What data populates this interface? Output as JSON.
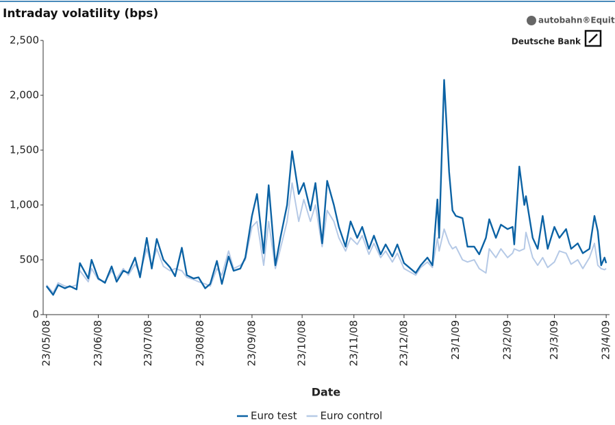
{
  "logo": {
    "brand": "autobahn®Equity",
    "company": "Deutsche Bank"
  },
  "chart_data": {
    "type": "line",
    "title": "Intraday volatility (bps)",
    "x_label": "Date",
    "x": [
      "23/05/08",
      "27/05/08",
      "30/05/08",
      "03/06/08",
      "06/06/08",
      "10/06/08",
      "12/06/08",
      "17/06/08",
      "19/06/08",
      "23/06/08",
      "27/06/08",
      "01/07/08",
      "04/07/08",
      "08/07/08",
      "11/07/08",
      "15/07/08",
      "18/07/08",
      "22/07/08",
      "25/07/08",
      "28/07/08",
      "01/08/08",
      "05/08/08",
      "08/08/08",
      "12/08/08",
      "15/08/08",
      "19/08/08",
      "22/08/08",
      "26/08/08",
      "29/08/08",
      "02/09/08",
      "05/09/08",
      "09/09/08",
      "12/09/08",
      "16/09/08",
      "19/09/08",
      "23/09/08",
      "26/09/08",
      "30/09/08",
      "03/10/08",
      "07/10/08",
      "10/10/08",
      "14/10/08",
      "17/10/08",
      "21/10/08",
      "24/10/08",
      "28/10/08",
      "31/10/08",
      "04/11/08",
      "07/11/08",
      "11/11/08",
      "14/11/08",
      "18/11/08",
      "21/11/08",
      "25/11/08",
      "28/11/08",
      "02/12/08",
      "05/12/08",
      "09/12/08",
      "12/12/08",
      "16/12/08",
      "19/12/08",
      "23/12/08",
      "30/12/08",
      "02/01/09",
      "06/01/09",
      "09/01/09",
      "12/01/09",
      "13/01/09",
      "16/01/09",
      "19/01/09",
      "21/01/09",
      "23/01/09",
      "27/01/09",
      "30/01/09",
      "03/02/09",
      "06/02/09",
      "10/02/09",
      "12/02/09",
      "16/02/09",
      "19/02/09",
      "23/02/09",
      "26/02/09",
      "27/02/09",
      "02/03/09",
      "05/03/09",
      "06/03/09",
      "10/03/09",
      "13/03/09",
      "16/03/09",
      "19/03/09",
      "23/03/09",
      "26/03/09",
      "30/03/09",
      "02/04/09",
      "06/04/09",
      "09/04/09",
      "13/04/09",
      "16/04/09",
      "18/04/09",
      "20/04/09",
      "22/04/09",
      "23/04/09"
    ],
    "series": [
      {
        "name": "Euro test",
        "color": "#0b62a4",
        "width": 2.4,
        "values": [
          260,
          180,
          270,
          240,
          260,
          230,
          470,
          330,
          500,
          330,
          290,
          440,
          300,
          400,
          380,
          520,
          340,
          700,
          420,
          690,
          500,
          430,
          350,
          610,
          360,
          330,
          340,
          240,
          280,
          490,
          280,
          530,
          400,
          420,
          520,
          900,
          1100,
          560,
          1180,
          450,
          700,
          1000,
          1490,
          1100,
          1200,
          950,
          1200,
          650,
          1220,
          1000,
          800,
          620,
          850,
          700,
          800,
          600,
          720,
          550,
          640,
          530,
          640,
          470,
          380,
          450,
          520,
          450,
          1050,
          700,
          2140,
          1300,
          950,
          900,
          880,
          620,
          620,
          550,
          700,
          870,
          700,
          820,
          780,
          800,
          640,
          1350,
          1000,
          1080,
          700,
          600,
          900,
          600,
          800,
          700,
          780,
          600,
          650,
          560,
          600,
          900,
          760,
          450,
          520,
          470
        ]
      },
      {
        "name": "Euro control",
        "color": "#b5c9e6",
        "width": 2,
        "values": [
          270,
          200,
          290,
          260,
          250,
          270,
          400,
          300,
          420,
          320,
          300,
          400,
          330,
          420,
          360,
          460,
          380,
          600,
          450,
          600,
          440,
          400,
          420,
          400,
          340,
          320,
          300,
          280,
          260,
          420,
          360,
          580,
          420,
          450,
          500,
          800,
          850,
          450,
          850,
          420,
          600,
          850,
          1200,
          850,
          1050,
          850,
          1000,
          620,
          950,
          850,
          700,
          580,
          700,
          640,
          720,
          550,
          650,
          520,
          580,
          480,
          560,
          420,
          360,
          430,
          480,
          430,
          700,
          580,
          780,
          650,
          600,
          620,
          500,
          480,
          500,
          420,
          380,
          600,
          520,
          600,
          520,
          560,
          600,
          580,
          600,
          750,
          520,
          450,
          520,
          430,
          480,
          580,
          560,
          460,
          500,
          420,
          520,
          650,
          450,
          420,
          410,
          420
        ]
      }
    ],
    "xlim": [
      "21/05/08",
      "25/04/09"
    ],
    "xticks": [
      "23/05/08",
      "23/06/08",
      "23/07/08",
      "23/08/08",
      "23/09/08",
      "23/10/08",
      "23/11/08",
      "23/12/08",
      "23/1/09",
      "23/2/09",
      "23/3/09",
      "23/4/09"
    ],
    "ylim": [
      0,
      2500
    ],
    "yticks": [
      0,
      500,
      {
        "value": 1000,
        "label": "1,000"
      },
      {
        "value": 1500,
        "label": "1,500"
      },
      {
        "value": 2000,
        "label": "2,000"
      },
      {
        "value": 2500,
        "label": "2,500"
      }
    ],
    "legend": "bottom"
  }
}
